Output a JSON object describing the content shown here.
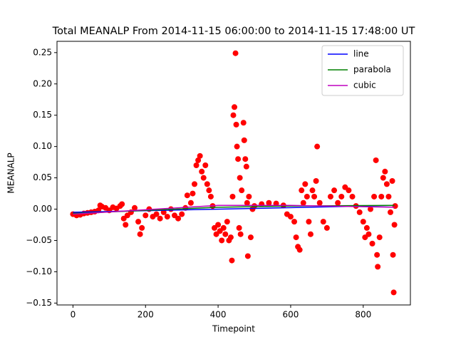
{
  "chart_data": {
    "type": "scatter",
    "title": "Total MEANALP From 2014-11-15 06:00:00 to 2014-11-15 17:48:00 UT",
    "x_label": "Timepoint",
    "y_label": "MEANALP",
    "xlim": [
      -44,
      930
    ],
    "ylim": [
      -0.153,
      0.268
    ],
    "xticks": [
      0,
      200,
      400,
      600,
      800
    ],
    "yticks": [
      {
        "value": -0.15,
        "label": "−0.15"
      },
      {
        "value": -0.1,
        "label": "−0.10"
      },
      {
        "value": -0.05,
        "label": "−0.05"
      },
      {
        "value": 0,
        "label": "0.00"
      },
      {
        "value": 0.05,
        "label": "0.05"
      },
      {
        "value": 0.1,
        "label": "0.10"
      },
      {
        "value": 0.15,
        "label": "0.15"
      },
      {
        "value": 0.2,
        "label": "0.20"
      },
      {
        "value": 0.25,
        "label": "0.25"
      }
    ],
    "legend": "upper right",
    "points": {
      "color": "#ff0000",
      "x": [
        0,
        10,
        20,
        30,
        40,
        50,
        60,
        70,
        75,
        80,
        90,
        100,
        110,
        120,
        130,
        135,
        140,
        145,
        150,
        160,
        170,
        180,
        185,
        190,
        200,
        210,
        220,
        230,
        240,
        250,
        260,
        270,
        280,
        290,
        300,
        310,
        315,
        325,
        330,
        335,
        340,
        345,
        350,
        355,
        360,
        365,
        370,
        375,
        380,
        385,
        390,
        395,
        400,
        405,
        410,
        415,
        420,
        425,
        430,
        435,
        438,
        440,
        442,
        445,
        448,
        450,
        452,
        455,
        458,
        460,
        462,
        465,
        470,
        472,
        475,
        478,
        480,
        482,
        485,
        490,
        495,
        500,
        520,
        540,
        560,
        580,
        590,
        600,
        610,
        615,
        620,
        625,
        630,
        635,
        640,
        645,
        650,
        655,
        660,
        665,
        670,
        673,
        680,
        690,
        700,
        710,
        720,
        730,
        740,
        750,
        760,
        770,
        780,
        790,
        800,
        805,
        810,
        815,
        820,
        825,
        830,
        835,
        838,
        840,
        845,
        850,
        855,
        860,
        865,
        870,
        875,
        880,
        882,
        884,
        886,
        888
      ],
      "y": [
        -0.008,
        -0.01,
        -0.009,
        -0.007,
        -0.006,
        -0.005,
        -0.004,
        -0.002,
        0.006,
        0.004,
        0.002,
        -0.002,
        0.003,
        0.001,
        0.005,
        0.008,
        -0.015,
        -0.025,
        -0.01,
        -0.005,
        0.002,
        -0.02,
        -0.04,
        -0.03,
        -0.01,
        0.0,
        -0.012,
        -0.008,
        -0.015,
        -0.005,
        -0.012,
        0.0,
        -0.01,
        -0.015,
        -0.008,
        0.002,
        0.022,
        0.01,
        0.025,
        0.04,
        0.07,
        0.078,
        0.085,
        0.06,
        0.05,
        0.07,
        0.04,
        0.03,
        0.02,
        0.005,
        -0.03,
        -0.04,
        -0.025,
        -0.035,
        -0.05,
        -0.03,
        -0.04,
        -0.02,
        -0.05,
        -0.045,
        -0.082,
        0.02,
        0.15,
        0.163,
        0.249,
        0.135,
        0.1,
        0.08,
        -0.03,
        0.05,
        -0.04,
        0.03,
        0.138,
        0.11,
        0.08,
        0.068,
        0.01,
        -0.075,
        0.02,
        -0.045,
        0.0,
        0.005,
        0.008,
        0.01,
        0.009,
        0.006,
        -0.008,
        -0.012,
        -0.02,
        -0.045,
        -0.06,
        -0.065,
        0.03,
        0.01,
        0.04,
        0.02,
        -0.02,
        -0.04,
        0.03,
        0.02,
        0.045,
        0.1,
        0.01,
        -0.02,
        -0.03,
        0.02,
        0.03,
        0.01,
        0.02,
        0.035,
        0.03,
        0.02,
        0.005,
        -0.005,
        -0.02,
        -0.045,
        -0.03,
        -0.04,
        0.0,
        -0.055,
        0.02,
        0.078,
        -0.073,
        -0.092,
        -0.045,
        0.02,
        0.05,
        0.06,
        0.04,
        0.02,
        -0.005,
        0.045,
        -0.073,
        -0.133,
        -0.025,
        0.005
      ]
    },
    "series": [
      {
        "name": "line",
        "color": "#0000ff",
        "x": [
          0,
          886
        ],
        "values": [
          -0.005,
          0.006
        ]
      },
      {
        "name": "parabola",
        "color": "#008000",
        "x": [
          0,
          200,
          400,
          600,
          886
        ],
        "values": [
          -0.007,
          -0.002,
          0.003,
          0.005,
          0.006
        ]
      },
      {
        "name": "cubic",
        "color": "#bf00bf",
        "x": [
          0,
          200,
          400,
          600,
          886
        ],
        "values": [
          -0.008,
          -0.001,
          0.006,
          0.006,
          0.003
        ]
      }
    ]
  }
}
